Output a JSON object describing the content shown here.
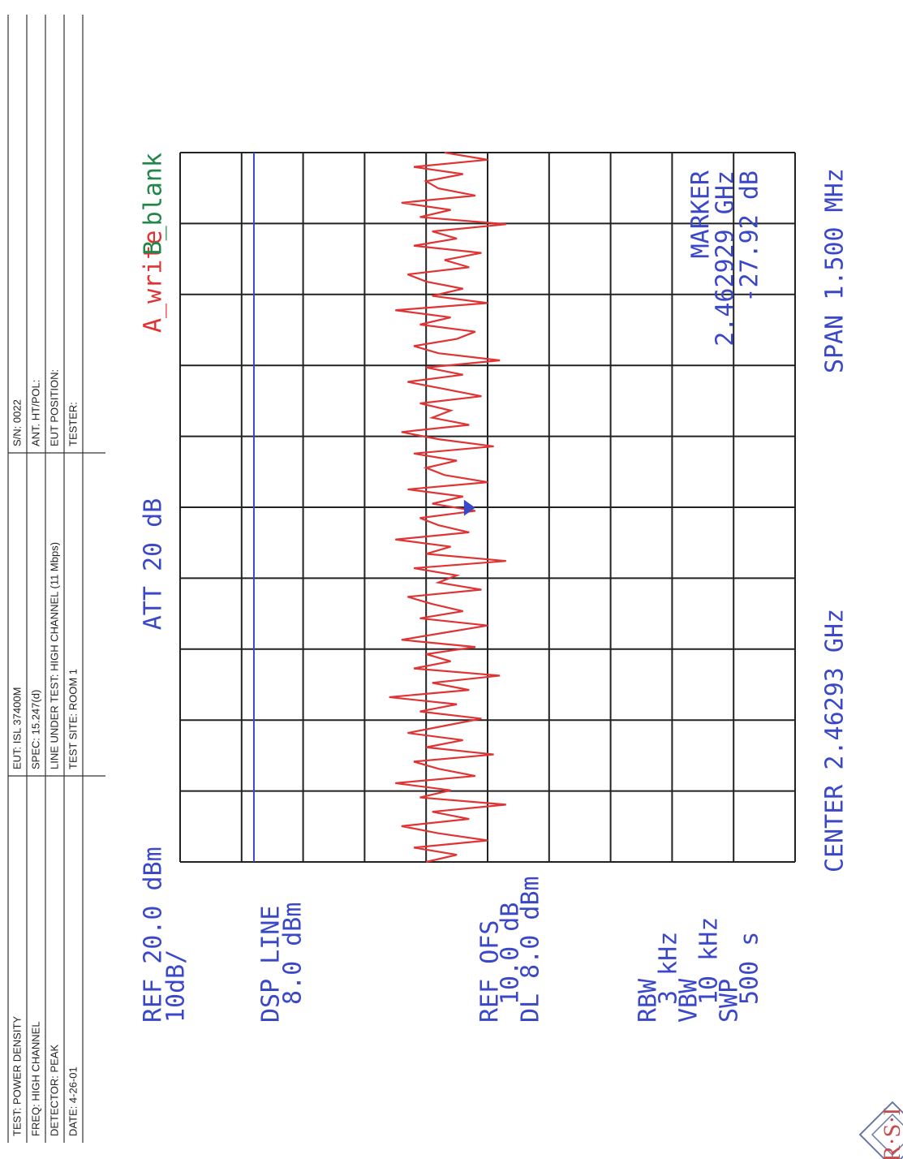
{
  "header": {
    "rows": [
      [
        "TEST: POWER DENSITY",
        "EUT: ISL 37400M",
        "S/N: 0022"
      ],
      [
        "FREQ: HIGH CHANNEL",
        "SPEC: 15.247(d)",
        "ANT. HT/POL:"
      ],
      [
        "DETECTOR: PEAK",
        "LINE UNDER TEST: HIGH CHANNEL (11 Mbps)",
        "EUT POSITION:"
      ],
      [
        "DATE: 4-26-01",
        "TEST SITE: ROOM 1",
        "TESTER:"
      ]
    ]
  },
  "logo": "R·S·I",
  "chart_data": {
    "type": "line",
    "settings_left": [
      "REF 20.0 dBm",
      "10dB/",
      "DSP LINE",
      "8.0 dBm",
      "REF OFS",
      "10.0 dB",
      "DL 8.0 dBm",
      "RBW",
      "3 kHz",
      "VBW",
      "10 kHz",
      "SWP",
      "500 s"
    ],
    "attenuation": "ATT 20 dB",
    "trace_a": "A_write",
    "trace_b": "B_blank",
    "center": "CENTER 2.46293 GHz",
    "span": "SPAN 1.500 MHz",
    "xlim": [
      2.46218,
      2.46368
    ],
    "ylim": [
      -80,
      20
    ],
    "display_line": 8.0,
    "marker": {
      "title": "MARKER",
      "x": 2.462929,
      "x_label": "2.462929 GHz",
      "value": -27.92,
      "value_label": "-27.92 dB"
    },
    "series": [
      {
        "name": "A_write",
        "color": "#e03434",
        "values": [
          -20,
          -25,
          -18,
          -30,
          -22,
          -16,
          -27,
          -21,
          -33,
          -19,
          -24,
          -15,
          -28,
          -22,
          -18,
          -31,
          -20,
          -26,
          -17,
          -23,
          -29,
          -19,
          -25,
          -14,
          -27,
          -21,
          -32,
          -18,
          -24,
          -20,
          -28,
          -16,
          -23,
          -30,
          -19,
          -26,
          -21,
          -17,
          -29,
          -22,
          -25,
          -18,
          -33,
          -20,
          -24,
          -15,
          -27,
          -22,
          -19,
          -28,
          -21,
          -26,
          -17,
          -30,
          -23,
          -20,
          -25,
          -18,
          -31,
          -22,
          -16,
          -27,
          -21,
          -24,
          -19,
          -29,
          -23,
          -17,
          -26,
          -20,
          -32,
          -22,
          -18,
          -25,
          -28,
          -19,
          -24,
          -15,
          -30,
          -21,
          -26,
          -20,
          -17,
          -27,
          -23,
          -29,
          -18,
          -25,
          -21,
          -33,
          -19,
          -24,
          -16,
          -28,
          -22,
          -20,
          -26,
          -18,
          -30,
          -23
        ]
      }
    ]
  }
}
